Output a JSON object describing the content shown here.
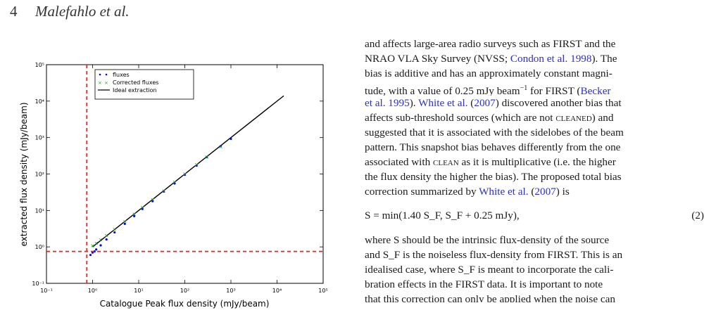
{
  "header": {
    "page_number": "4",
    "authors": "Malefahlo  et al."
  },
  "figure": {
    "xlabel": "Catalogue Peak flux density (mJy/beam)",
    "ylabel": "extracted flux density (mJy/beam)",
    "x_ticks": [
      "10⁻¹",
      "10⁰",
      "10¹",
      "10²",
      "10³",
      "10⁴",
      "10⁵"
    ],
    "y_ticks": [
      "10⁻¹",
      "10⁰",
      "10¹",
      "10²",
      "10³",
      "10⁴",
      "10⁵"
    ],
    "legend": [
      "fluxes",
      "Corrected fluxes",
      "Ideal extraction"
    ],
    "colors": {
      "fluxes": "#0000ff",
      "corrected": "#2e9e2e",
      "ideal": "#000000",
      "threshold": "#e8231f"
    }
  },
  "chart_data": {
    "type": "scatter",
    "title": "",
    "xlabel": "Catalogue Peak flux density (mJy/beam)",
    "ylabel": "extracted flux density (mJy/beam)",
    "x_scale": "log",
    "y_scale": "log",
    "xlim": [
      0.1,
      100000
    ],
    "ylim": [
      0.1,
      100000
    ],
    "legend_position": "top-left",
    "threshold_lines": {
      "x": 0.75,
      "y": 0.75
    },
    "series": [
      {
        "name": "fluxes",
        "marker": "dot",
        "color": "#0000ff",
        "x": [
          0.9,
          1.0,
          1.1,
          1.2,
          1.5,
          2,
          3,
          5,
          8,
          12,
          20,
          35,
          60,
          100,
          180,
          300,
          600,
          1000
        ],
        "y": [
          0.6,
          0.7,
          0.75,
          0.85,
          1.1,
          1.6,
          2.5,
          4.3,
          7,
          11,
          18,
          33,
          55,
          95,
          170,
          290,
          580,
          920
        ]
      },
      {
        "name": "Corrected fluxes",
        "marker": "x",
        "color": "#2e9e2e",
        "x": [
          1.0,
          1.2,
          1.5,
          2,
          3,
          5,
          8,
          12,
          20,
          35,
          60,
          100,
          180,
          300,
          600
        ],
        "y": [
          1.1,
          1.3,
          1.6,
          2.1,
          3.1,
          5.1,
          8.2,
          12.3,
          20,
          35,
          61,
          102,
          185,
          300,
          560
        ]
      },
      {
        "name": "Ideal extraction",
        "marker": "line",
        "color": "#000000",
        "x": [
          1,
          14000
        ],
        "y": [
          1,
          14000
        ]
      }
    ]
  },
  "text": {
    "l1": "and affects large-area radio surveys such as FIRST and the",
    "l2a": "NRAO VLA Sky Survey (NVSS; ",
    "l2link": "Condon et al. 1998",
    "l2b": "). The",
    "l3": "bias is additive and has an approximately constant magni-",
    "l4a": "tude, with a value of 0.25 mJy beam",
    "l4sup": "−1",
    "l4b": " for FIRST (",
    "l4link": "Becker",
    "l5link": "et al. 1995",
    "l5b": "). ",
    "l5link2": "White et al.",
    "l5c": " (",
    "l5link3": "2007",
    "l5d": ") discovered another bias that",
    "l6a": "affects sub-threshold sources (which are not ",
    "l6sc": "cleaned",
    "l6b": ") and",
    "l7": "suggested that it is associated with the sidelobes of the beam",
    "l8": "pattern. This snapshot bias behaves differently from the one",
    "l9a": "associated with ",
    "l9sc": "clean",
    "l9b": " as it is multiplicative (i.e. the higher",
    "l10": "the flux density the higher the bias). The proposed total bias",
    "l11a": "correction summarized by ",
    "l11link": "White et al.",
    "l11b": " (",
    "l11link2": "2007",
    "l11c": ") is",
    "eq_text": "S = min(1.40 S_F, S_F + 0.25 mJy),",
    "eq_number": "(2)",
    "p1": "where S should be the intrinsic flux-density of the source",
    "p2": "and S_F is the noiseless flux-density from FIRST. This is an",
    "p3": "idealised case, where S_F is meant to incorporate the cali-",
    "p4": "bration effects in the FIRST data. It is important to note",
    "p5": "that this correction can only be applied when the noise can"
  }
}
